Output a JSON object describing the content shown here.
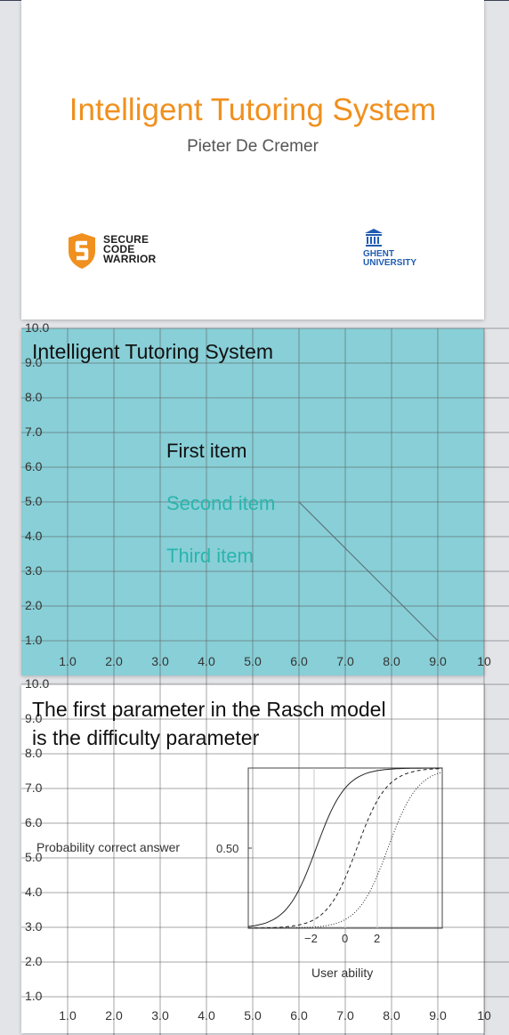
{
  "slide1": {
    "title": "Intelligent Tutoring System",
    "author": "Pieter De Cremer",
    "logo_left": {
      "name": "Secure Code Warrior",
      "lines": [
        "SECURE",
        "CODE",
        "WARRIOR"
      ],
      "color": "#f0901e"
    },
    "logo_right": {
      "name": "Ghent University",
      "lines": [
        "GHENT",
        "UNIVERSITY"
      ],
      "color": "#1f5cb2"
    }
  },
  "slide2": {
    "title": "Intelligent Tutoring System",
    "background": "#88cfd7",
    "items": [
      "First item",
      "Second item",
      "Third item"
    ],
    "accent": "#2ab5ad"
  },
  "slide3": {
    "title_lines": [
      "The first parameter in the Rasch model",
      "is the difficulty parameter"
    ],
    "figure": {
      "ylabel": "Probability correct answer",
      "ytick": "0.50",
      "xlabel": "User ability",
      "xticks": [
        "−2",
        "0",
        "2"
      ]
    }
  },
  "grid_overlay": {
    "x_labels": [
      "1.0",
      "2.0",
      "3.0",
      "4.0",
      "5.0",
      "6.0",
      "7.0",
      "8.0",
      "9.0",
      "10"
    ],
    "y_labels": [
      "10.0",
      "9.0",
      "8.0",
      "7.0",
      "6.0",
      "5.0",
      "4.0",
      "3.0",
      "2.0",
      "1.0"
    ]
  }
}
